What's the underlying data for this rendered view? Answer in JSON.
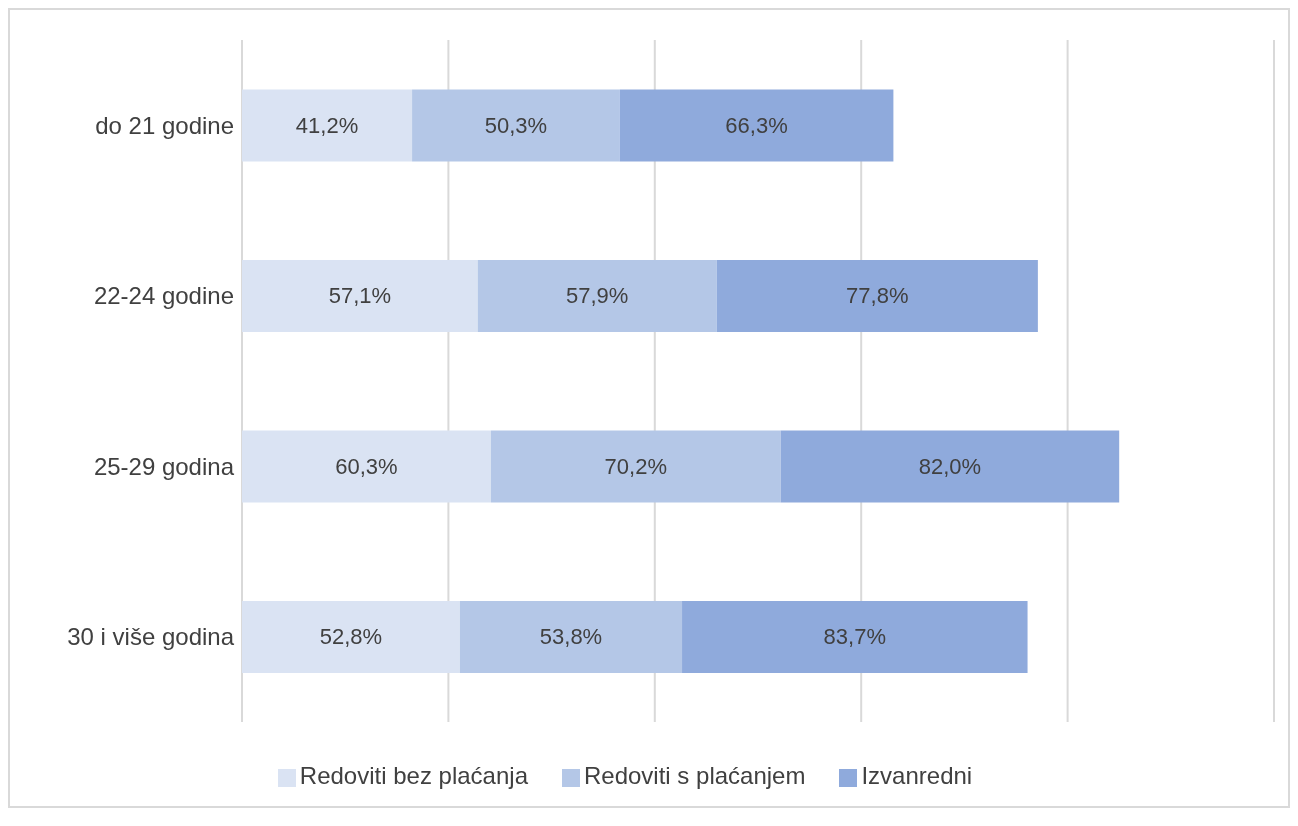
{
  "chart_data": {
    "type": "bar",
    "orientation": "horizontal",
    "stacked": true,
    "categories": [
      "do 21 godine",
      "22-24 godine",
      "25-29 godina",
      "30 i više godina"
    ],
    "series": [
      {
        "name": "Redoviti bez plaćanja",
        "color": "#dae3f3",
        "values": [
          41.2,
          57.1,
          60.3,
          52.8
        ],
        "value_labels": [
          "41,2%",
          "57,1%",
          "60,3%",
          "52,8%"
        ]
      },
      {
        "name": "Redoviti s plaćanjem",
        "color": "#b4c7e7",
        "values": [
          50.3,
          57.9,
          70.2,
          53.8
        ],
        "value_labels": [
          "50,3%",
          "57,9%",
          "70,2%",
          "53,8%"
        ]
      },
      {
        "name": "Izvanredni",
        "color": "#8faadc",
        "values": [
          66.3,
          77.8,
          82.0,
          83.7
        ],
        "value_labels": [
          "66,3%",
          "77,8%",
          "82,0%",
          "83,7%"
        ]
      }
    ],
    "xlim": [
      0,
      250
    ],
    "xticks": [
      {
        "value": 0,
        "label": null
      },
      {
        "value": 50,
        "label": null
      },
      {
        "value": 100,
        "label": null
      },
      {
        "value": 150,
        "label": null
      },
      {
        "value": 200,
        "label": null
      },
      {
        "value": 250,
        "label": null
      }
    ],
    "tick_labels": "y",
    "grid": "x",
    "legend": "bottom"
  }
}
